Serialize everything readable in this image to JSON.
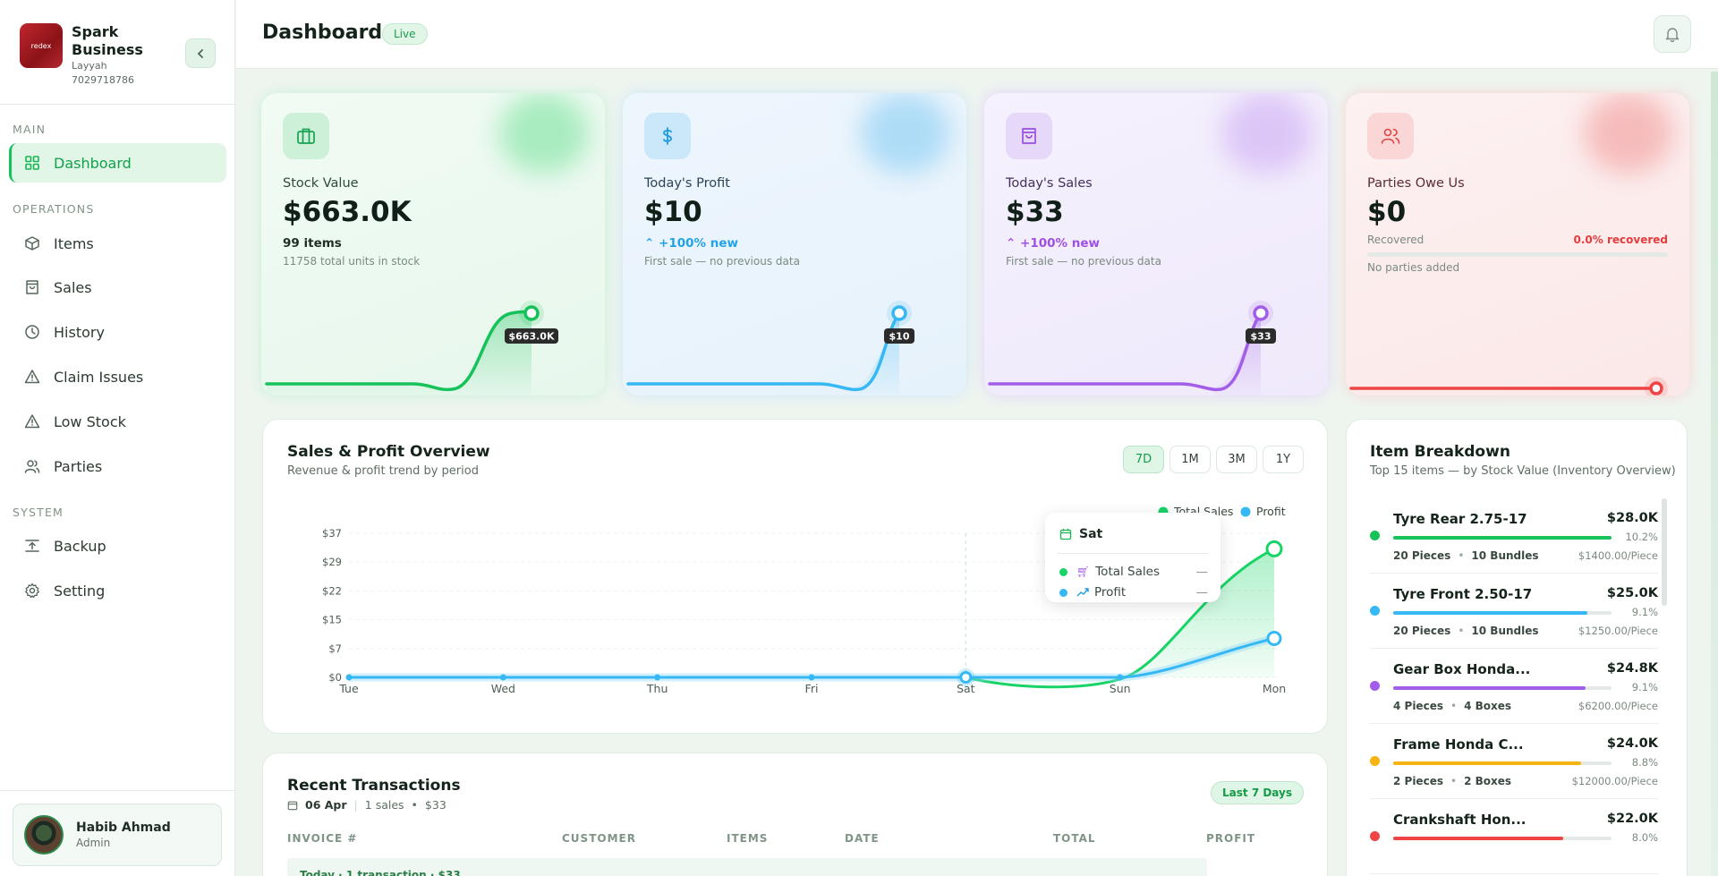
{
  "brand": {
    "name": "Spark Business",
    "location": "Layyah",
    "phone": "7029718786",
    "logo_text": "redex"
  },
  "sidebar": {
    "section_main": "MAIN",
    "section_operations": "OPERATIONS",
    "section_system": "SYSTEM",
    "items": [
      {
        "label": "Dashboard",
        "icon": "grid-icon"
      },
      {
        "label": "Items",
        "icon": "cube-icon"
      },
      {
        "label": "Sales",
        "icon": "bag-icon"
      },
      {
        "label": "History",
        "icon": "clock-icon"
      },
      {
        "label": "Claim Issues",
        "icon": "warning-icon"
      },
      {
        "label": "Low Stock",
        "icon": "warning-icon"
      },
      {
        "label": "Parties",
        "icon": "users-icon"
      },
      {
        "label": "Backup",
        "icon": "backup-icon"
      },
      {
        "label": "Setting",
        "icon": "gear-icon"
      }
    ]
  },
  "user": {
    "name": "Habib Ahmad",
    "role": "Admin"
  },
  "header": {
    "title": "Dashboard",
    "badge": "Live"
  },
  "cards": [
    {
      "label": "Stock Value",
      "value": "$663.0K",
      "sub1": "99 items",
      "sub2": "11758 total units in stock",
      "tag": "$663.0K",
      "color": "#16c25a"
    },
    {
      "label": "Today's Profit",
      "value": "$10",
      "sub1": "+100% new",
      "sub2": "First sale — no previous data",
      "tag": "$10",
      "color": "#35b8f4"
    },
    {
      "label": "Today's Sales",
      "value": "$33",
      "sub1": "+100% new",
      "sub2": "First sale — no previous data",
      "tag": "$33",
      "color": "#a25ee8"
    },
    {
      "label": "Parties Owe Us",
      "value": "$0",
      "recovered_label": "Recovered",
      "recovered_pct": "0.0% recovered",
      "sub2": "No parties added",
      "color": "#ef4444"
    }
  ],
  "overview": {
    "title": "Sales & Profit Overview",
    "subtitle": "Revenue & profit trend by period",
    "ranges": [
      "7D",
      "1M",
      "3M",
      "1Y"
    ],
    "active_range": "7D",
    "tooltip": {
      "day": "Sat",
      "sales_label": "Total Sales",
      "sales_value": "—",
      "profit_label": "Profit",
      "profit_value": "—"
    }
  },
  "chart_data": {
    "type": "line",
    "categories": [
      "Tue",
      "Wed",
      "Thu",
      "Fri",
      "Sat",
      "Sun",
      "Mon"
    ],
    "yticks": [
      "$0",
      "$7",
      "$15",
      "$22",
      "$29",
      "$37"
    ],
    "ylim": [
      0,
      37
    ],
    "series": [
      {
        "name": "Total Sales",
        "color": "#16d466",
        "values": [
          0,
          0,
          0,
          0,
          0,
          0,
          33
        ]
      },
      {
        "name": "Profit",
        "color": "#35b8f4",
        "values": [
          0,
          0,
          0,
          0,
          0,
          0,
          10
        ]
      }
    ],
    "legend": "top-right"
  },
  "transactions": {
    "title": "Recent Transactions",
    "date": "06 Apr",
    "count": "1 sales",
    "amount": "$33",
    "badge": "Last 7 Days",
    "columns": [
      "INVOICE #",
      "CUSTOMER",
      "ITEMS",
      "DATE",
      "TOTAL",
      "PROFIT"
    ],
    "group_label": "Today · 1 transaction · $33"
  },
  "breakdown": {
    "title": "Item Breakdown",
    "subtitle": "Top 15 items — by Stock Value (Inventory Overview)",
    "items": [
      {
        "name": "Tyre Rear 2.75-17",
        "value": "$28.0K",
        "pct": "10.2%",
        "fill": 1.0,
        "qty": "20 Pieces",
        "pack": "10 Bundles",
        "unit": "$1400.00/Piece",
        "color": "#16c25a"
      },
      {
        "name": "Tyre Front 2.50-17",
        "value": "$25.0K",
        "pct": "9.1%",
        "fill": 0.89,
        "qty": "20 Pieces",
        "pack": "10 Bundles",
        "unit": "$1250.00/Piece",
        "color": "#35b8f4"
      },
      {
        "name": "Gear Box Honda...",
        "value": "$24.8K",
        "pct": "9.1%",
        "fill": 0.88,
        "qty": "4 Pieces",
        "pack": "4 Boxes",
        "unit": "$6200.00/Piece",
        "color": "#a25ee8"
      },
      {
        "name": "Frame Honda C...",
        "value": "$24.0K",
        "pct": "8.8%",
        "fill": 0.86,
        "qty": "2 Pieces",
        "pack": "2 Boxes",
        "unit": "$12000.00/Piece",
        "color": "#f5b40f"
      },
      {
        "name": "Crankshaft Hon...",
        "value": "$22.0K",
        "pct": "8.0%",
        "fill": 0.78,
        "qty": "",
        "pack": "",
        "unit": "",
        "color": "#ef4444"
      }
    ]
  }
}
